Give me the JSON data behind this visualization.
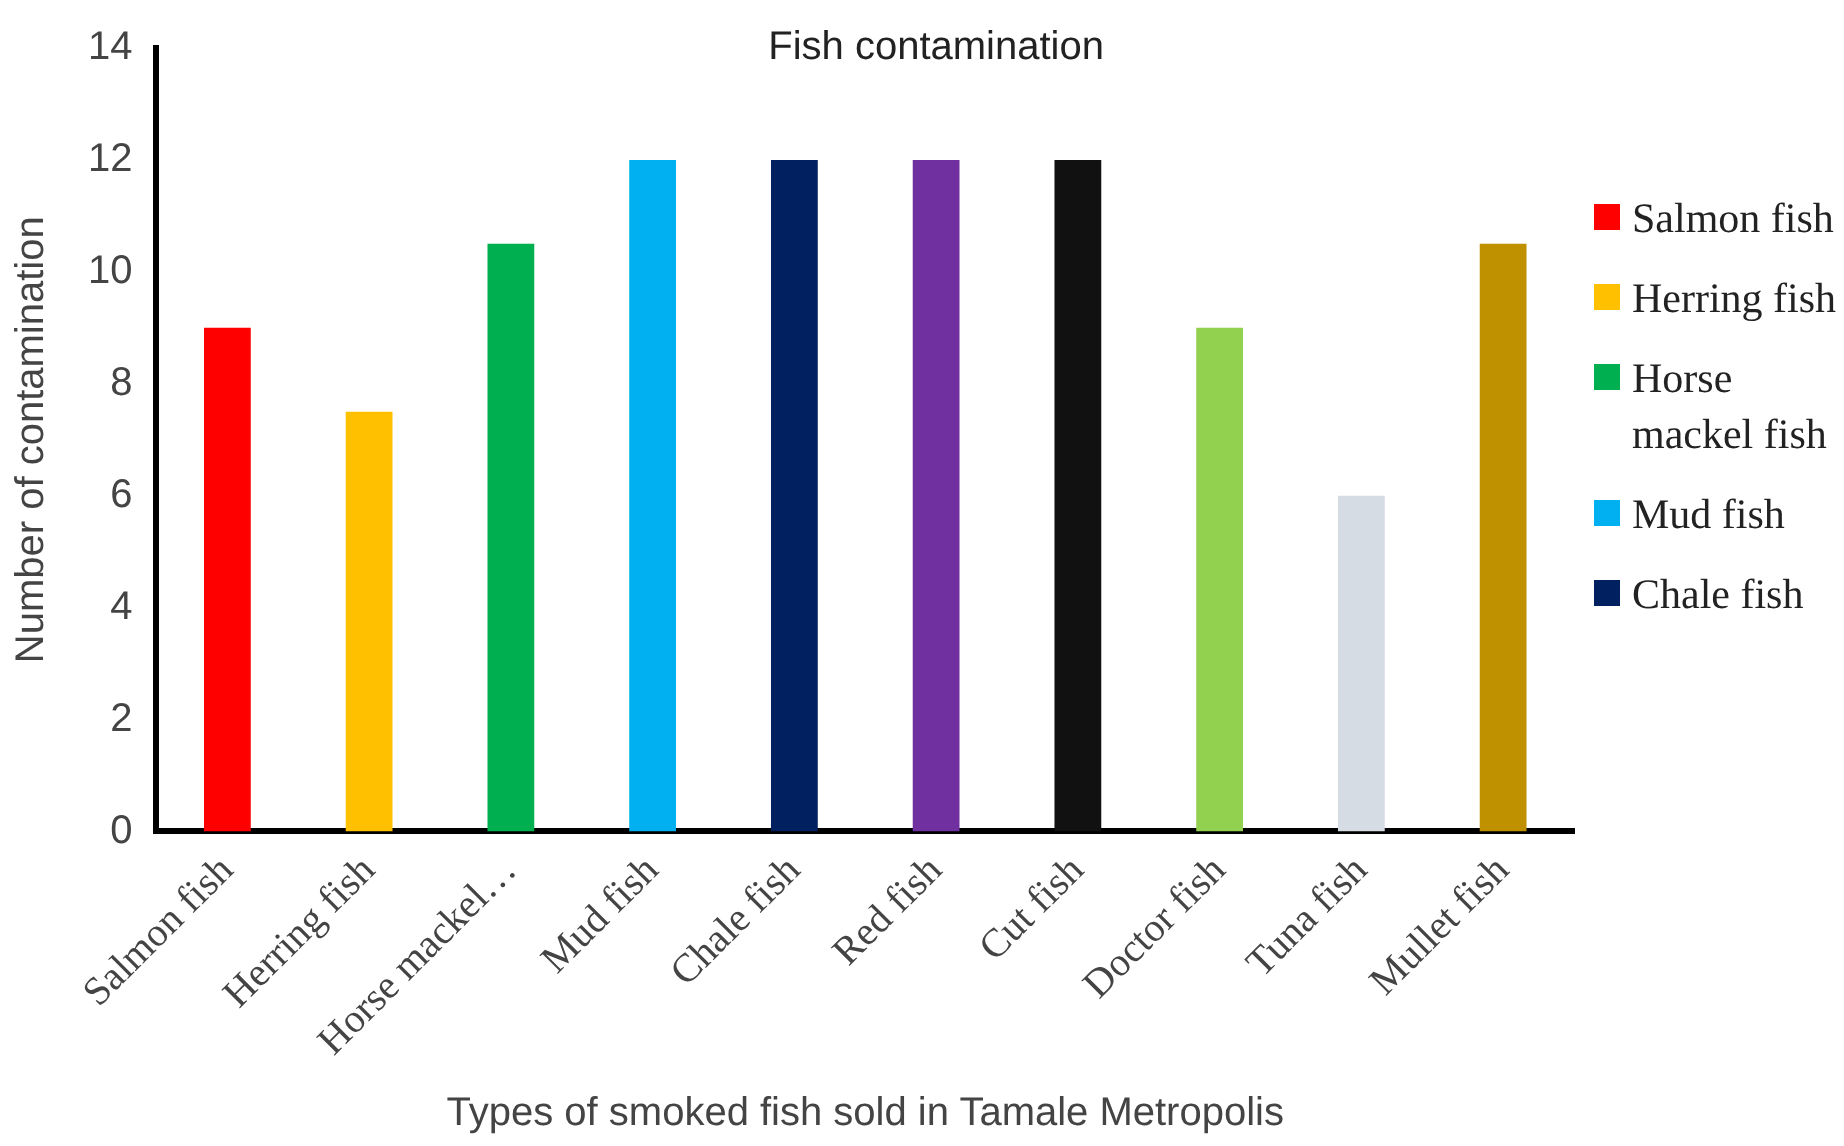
{
  "chart_data": {
    "type": "bar",
    "title": "Fish contamination",
    "xlabel": "Types of smoked fish sold in Tamale Metropolis",
    "ylabel": "Number of contamination",
    "categories": [
      "Salmon fish",
      "Herring fish",
      "Horse mackel…",
      "Mud fish",
      "Chale fish",
      "Red fish",
      "Cut fish",
      "Doctor fish",
      "Tuna fish",
      "Mullet fish"
    ],
    "series": [
      {
        "name": "Salmon fish",
        "color": "#ff0000",
        "values": [
          9,
          null,
          null,
          null,
          null,
          null,
          null,
          null,
          null,
          null
        ]
      },
      {
        "name": "Herring fish",
        "color": "#ffc000",
        "values": [
          null,
          7.5,
          null,
          null,
          null,
          null,
          null,
          null,
          null,
          null
        ]
      },
      {
        "name": "Horse mackel fish",
        "color": "#00b050",
        "values": [
          null,
          null,
          10.5,
          null,
          null,
          null,
          null,
          null,
          null,
          null
        ]
      },
      {
        "name": "Mud fish",
        "color": "#00b0f0",
        "values": [
          null,
          null,
          null,
          12,
          null,
          null,
          null,
          null,
          null,
          null
        ]
      },
      {
        "name": "Chale fish",
        "color": "#002060",
        "values": [
          null,
          null,
          null,
          null,
          12,
          null,
          null,
          null,
          null,
          null
        ]
      },
      {
        "color": "#7030a0",
        "values": [
          null,
          null,
          null,
          null,
          null,
          12,
          null,
          null,
          null,
          null
        ]
      },
      {
        "color": "#111111",
        "values": [
          null,
          null,
          null,
          null,
          null,
          null,
          12,
          null,
          null,
          null
        ]
      },
      {
        "color": "#92d050",
        "values": [
          null,
          null,
          null,
          null,
          null,
          null,
          null,
          9,
          null,
          null
        ]
      },
      {
        "color": "#d6dce4",
        "values": [
          null,
          null,
          null,
          null,
          null,
          null,
          null,
          null,
          6,
          null
        ]
      },
      {
        "color": "#bf9000",
        "values": [
          null,
          null,
          null,
          null,
          null,
          null,
          null,
          null,
          null,
          10.5
        ]
      }
    ],
    "ylim": [
      0,
      14
    ],
    "yticks": [
      0,
      2,
      4,
      6,
      8,
      10,
      12,
      14
    ],
    "grid": false,
    "legend": "right"
  }
}
